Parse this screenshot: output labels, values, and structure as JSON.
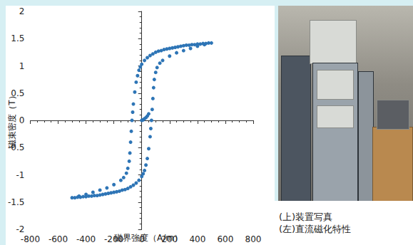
{
  "chart_data": {
    "type": "scatter",
    "xlabel": "磁界強度（A/m）",
    "ylabel": "磁束密度（T）",
    "x": [
      500,
      480,
      460,
      440,
      420,
      400,
      380,
      360,
      340,
      320,
      300,
      280,
      260,
      240,
      220,
      200,
      180,
      160,
      140,
      120,
      100,
      80,
      60,
      40,
      20,
      0,
      -10,
      -20,
      -30,
      -40,
      -50,
      -60,
      -65,
      -70,
      -75,
      -80,
      -85,
      -90,
      -100,
      -110,
      -130,
      -150,
      -200,
      -250,
      -300,
      -350,
      -400,
      -450,
      -500,
      -480,
      -460,
      -440,
      -420,
      -400,
      -380,
      -360,
      -340,
      -320,
      -300,
      -280,
      -260,
      -240,
      -220,
      -200,
      -180,
      -160,
      -140,
      -120,
      -100,
      -80,
      -60,
      -40,
      -20,
      0,
      10,
      20,
      30,
      40,
      50,
      60,
      65,
      70,
      75,
      80,
      85,
      90,
      100,
      110,
      130,
      150,
      200,
      250,
      300,
      350,
      400,
      450,
      0,
      10,
      20,
      30,
      40,
      50
    ],
    "values": [
      1.42,
      1.42,
      1.41,
      1.41,
      1.4,
      1.4,
      1.39,
      1.39,
      1.38,
      1.38,
      1.37,
      1.36,
      1.35,
      1.34,
      1.33,
      1.32,
      1.31,
      1.3,
      1.28,
      1.27,
      1.25,
      1.22,
      1.19,
      1.15,
      1.1,
      1.03,
      0.98,
      0.92,
      0.82,
      0.7,
      0.52,
      0.3,
      0.15,
      0,
      -0.2,
      -0.4,
      -0.6,
      -0.75,
      -0.88,
      -0.97,
      -1.05,
      -1.1,
      -1.18,
      -1.24,
      -1.28,
      -1.32,
      -1.36,
      -1.39,
      -1.42,
      -1.42,
      -1.41,
      -1.41,
      -1.4,
      -1.4,
      -1.39,
      -1.39,
      -1.38,
      -1.38,
      -1.37,
      -1.36,
      -1.35,
      -1.34,
      -1.33,
      -1.32,
      -1.31,
      -1.3,
      -1.28,
      -1.27,
      -1.25,
      -1.22,
      -1.19,
      -1.15,
      -1.1,
      -1.03,
      -0.98,
      -0.92,
      -0.82,
      -0.7,
      -0.52,
      -0.3,
      -0.15,
      0,
      0.2,
      0.4,
      0.6,
      0.75,
      0.88,
      0.97,
      1.05,
      1.1,
      1.18,
      1.24,
      1.28,
      1.32,
      1.36,
      1.39,
      0,
      0.01,
      0.03,
      0.05,
      0.08,
      0.12
    ],
    "color": "#2e75b6",
    "marker": "circle",
    "xlim": [
      -800,
      800
    ],
    "xticks": [
      -800,
      -600,
      -400,
      -200,
      0,
      200,
      400,
      600,
      800
    ],
    "ylim": [
      -2,
      2
    ],
    "yticks": [
      -2,
      -1.5,
      -1,
      -0.5,
      0,
      0.5,
      1,
      1.5,
      2
    ],
    "grid": false
  },
  "captions": [
    "(上)装置写真",
    "(左)直流磁化特性"
  ]
}
